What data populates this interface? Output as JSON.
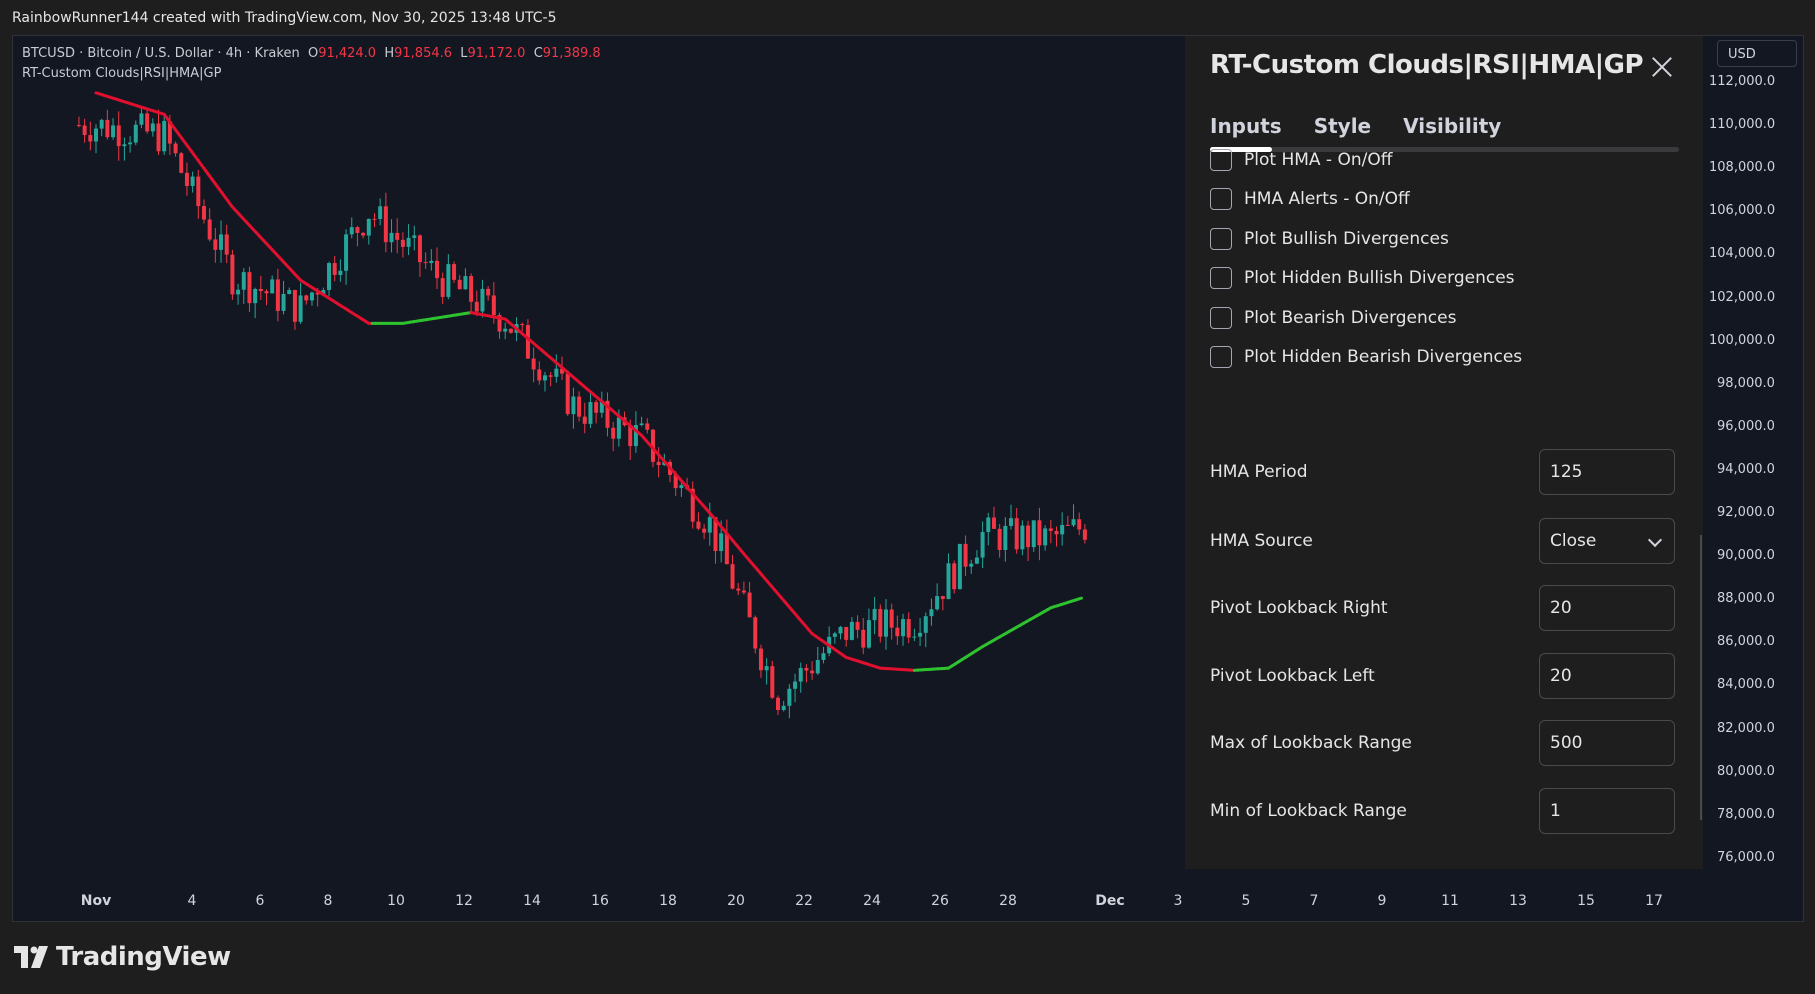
{
  "header": {
    "attribution": "RainbowRunner144 created with TradingView.com, Nov 30, 2025 13:48 UTC-5"
  },
  "legend": {
    "symbol": "BTCUSD · Bitcoin / U.S. Dollar · 4h · Kraken",
    "open_label": "O",
    "open": "91,424.0",
    "high_label": "H",
    "high": "91,854.6",
    "low_label": "L",
    "low": "91,172.0",
    "close_label": "C",
    "close": "91,389.8",
    "indicator": "RT-Custom Clouds|RSI|HMA|GP"
  },
  "dialog": {
    "title": "RT-Custom Clouds|RSI|HMA|GP",
    "tabs": [
      "Inputs",
      "Style",
      "Visibility"
    ],
    "checkboxes": [
      {
        "label": "Plot HMA - On/Off",
        "checked": false
      },
      {
        "label": "HMA Alerts - On/Off",
        "checked": false
      },
      {
        "label": "Plot Bullish Divergences",
        "checked": false
      },
      {
        "label": "Plot Hidden Bullish Divergences",
        "checked": false
      },
      {
        "label": "Plot Bearish Divergences",
        "checked": false
      },
      {
        "label": "Plot Hidden Bearish Divergences",
        "checked": false
      }
    ],
    "fields": [
      {
        "label": "HMA Period",
        "value": "125"
      },
      {
        "label": "HMA Source",
        "value": "Close"
      },
      {
        "label": "Pivot Lookback Right",
        "value": "20"
      },
      {
        "label": "Pivot Lookback Left",
        "value": "20"
      },
      {
        "label": "Max of Lookback Range",
        "value": "500"
      },
      {
        "label": "Min of Lookback Range",
        "value": "1"
      }
    ]
  },
  "price_axis": {
    "currency": "USD",
    "labels": [
      "112,000.0",
      "110,000.0",
      "108,000.0",
      "106,000.0",
      "104,000.0",
      "102,000.0",
      "100,000.0",
      "98,000.0",
      "96,000.0",
      "94,000.0",
      "92,000.0",
      "90,000.0",
      "88,000.0",
      "86,000.0",
      "84,000.0",
      "82,000.0",
      "80,000.0",
      "78,000.0",
      "76,000.0"
    ]
  },
  "time_axis": {
    "labels": [
      "Nov",
      "4",
      "6",
      "8",
      "10",
      "12",
      "14",
      "16",
      "18",
      "20",
      "22",
      "24",
      "26",
      "28",
      "Dec",
      "3",
      "5",
      "7",
      "9",
      "11",
      "13",
      "15",
      "17"
    ]
  },
  "colors": {
    "up": "#26a69a",
    "down": "#f23645",
    "hma_bull": "#2ec22e",
    "hma_bear": "#e0102e",
    "background": "#131722"
  },
  "chart_data": {
    "type": "candlestick",
    "x": [
      "Nov 1",
      "Nov 3",
      "Nov 5",
      "Nov 7",
      "Nov 9",
      "Nov 11",
      "Nov 13",
      "Nov 15",
      "Nov 17",
      "Nov 19",
      "Nov 21",
      "Nov 23",
      "Nov 25",
      "Nov 27",
      "Nov 29",
      "Nov 30"
    ],
    "close_trend": [
      110000,
      109500,
      103000,
      101500,
      106000,
      103000,
      101000,
      97000,
      95500,
      91500,
      83500,
      86500,
      87000,
      91000,
      90800,
      91389.8
    ],
    "hma": {
      "name": "HMA (125)",
      "x": [
        "Nov 1",
        "Nov 3",
        "Nov 5",
        "Nov 7",
        "Nov 9",
        "Nov 10",
        "Nov 12",
        "Nov 13",
        "Nov 15",
        "Nov 17",
        "Nov 19",
        "Nov 20",
        "Nov 22",
        "Nov 23",
        "Nov 24",
        "Nov 25",
        "Nov 26",
        "Nov 27",
        "Nov 28",
        "Nov 29",
        "Nov 30"
      ],
      "y": [
        111500,
        110500,
        106200,
        102800,
        100800,
        100800,
        101300,
        101000,
        98300,
        95600,
        92000,
        90100,
        86400,
        85300,
        84800,
        84700,
        84800,
        85800,
        86700,
        87600,
        88100
      ]
    },
    "ylim": [
      76000,
      112000
    ]
  }
}
